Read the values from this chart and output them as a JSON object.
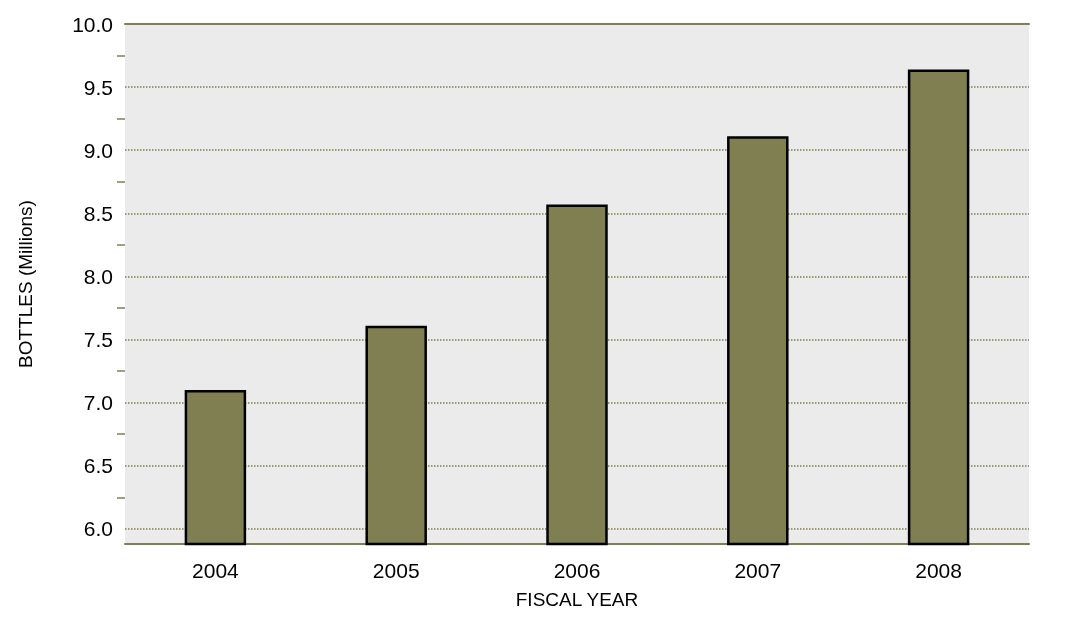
{
  "chart_data": {
    "type": "bar",
    "xlabel": "FISCAL YEAR",
    "ylabel": "BOTTLES (Millions)",
    "categories": [
      "2004",
      "2005",
      "2006",
      "2007",
      "2008"
    ],
    "values": [
      7.1,
      7.61,
      8.57,
      9.11,
      9.64
    ],
    "color": "#807f52",
    "ylim": [
      5.88,
      10
    ],
    "yticks": [
      {
        "value": 6,
        "label": "6.0"
      },
      {
        "value": 6.25,
        "label": null
      },
      {
        "value": 6.5,
        "label": "6.5"
      },
      {
        "value": 6.75,
        "label": null
      },
      {
        "value": 7,
        "label": "7.0"
      },
      {
        "value": 7.25,
        "label": null
      },
      {
        "value": 7.5,
        "label": "7.5"
      },
      {
        "value": 7.75,
        "label": null
      },
      {
        "value": 8,
        "label": "8.0"
      },
      {
        "value": 8.25,
        "label": null
      },
      {
        "value": 8.5,
        "label": "8.5"
      },
      {
        "value": 8.75,
        "label": null
      },
      {
        "value": 9,
        "label": "9.0"
      },
      {
        "value": 9.25,
        "label": null
      },
      {
        "value": 9.5,
        "label": "9.5"
      },
      {
        "value": 9.75,
        "label": null
      },
      {
        "value": 10,
        "label": "10.0"
      }
    ],
    "grid": "y"
  }
}
